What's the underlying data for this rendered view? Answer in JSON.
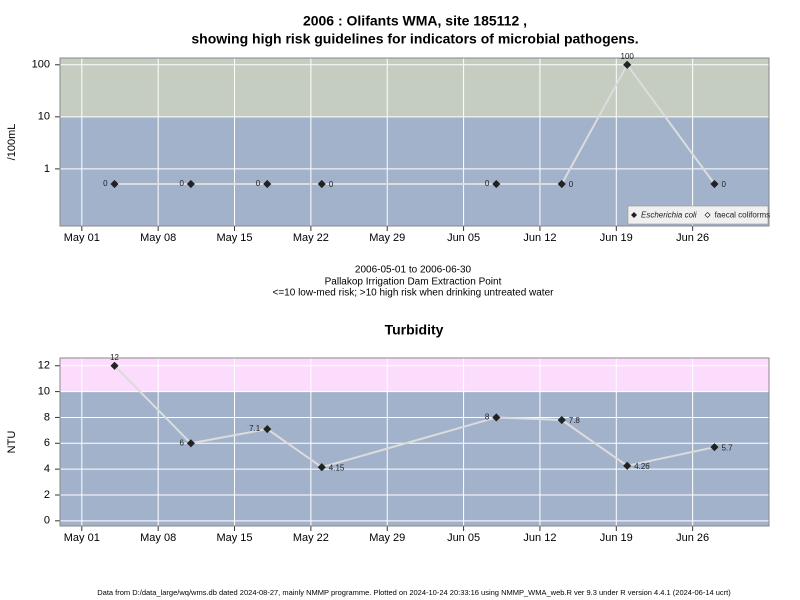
{
  "chart_data": [
    {
      "type": "line",
      "title": [
        "2006 : Olifants WMA, site 185112 ,",
        "showing high risk guidelines for indicators of microbial pathogens."
      ],
      "notes": [
        "2006-05-01 to 2006-06-30",
        "Pallakop Irrigation Dam Extraction Point",
        "<=10 low-med risk; >10 high risk when drinking untreated water"
      ],
      "y_label": "/100mL",
      "log_scale": true,
      "x": [
        "2006-05-04",
        "2006-05-11",
        "2006-05-18",
        "2006-05-23",
        "2006-06-08",
        "2006-06-14",
        "2006-06-20",
        "2006-06-28"
      ],
      "xlim": [
        "2006-04-29",
        "2006-07-03"
      ],
      "xticks": [
        {
          "value": "2006-05-01",
          "label": "May 01"
        },
        {
          "value": "2006-05-08",
          "label": "May 08"
        },
        {
          "value": "2006-05-15",
          "label": "May 15"
        },
        {
          "value": "2006-05-22",
          "label": "May 22"
        },
        {
          "value": "2006-05-29",
          "label": "May 29"
        },
        {
          "value": "2006-06-05",
          "label": "Jun 05"
        },
        {
          "value": "2006-06-12",
          "label": "Jun 12"
        },
        {
          "value": "2006-06-19",
          "label": "Jun 19"
        },
        {
          "value": "2006-06-26",
          "label": "Jun 26"
        }
      ],
      "ylim": [
        0.08,
        135
      ],
      "yticks": [
        1,
        10,
        100
      ],
      "grid": true,
      "background": "#a2b2cb",
      "bands": [
        {
          "from": 10,
          "color": "#c5ccc0"
        }
      ],
      "line_color": "#dcdcdc",
      "legend": "bottom-right",
      "series": [
        {
          "name": "Escherichia coli",
          "color": "#222222",
          "marker": "filled",
          "font_style": "italic",
          "values": [
            0,
            0,
            0,
            0,
            0,
            0,
            100,
            0
          ]
        },
        {
          "name": "faecal coliforms",
          "color": "#222222",
          "marker": "open",
          "values": [
            null,
            null,
            null,
            null,
            null,
            null,
            null,
            null
          ]
        }
      ]
    },
    {
      "type": "line",
      "title": "Turbidity",
      "y_label": "NTU",
      "log_scale": false,
      "x": [
        "2006-05-04",
        "2006-05-11",
        "2006-05-18",
        "2006-05-23",
        "2006-06-08",
        "2006-06-14",
        "2006-06-20",
        "2006-06-28"
      ],
      "xlim": [
        "2006-04-29",
        "2006-07-03"
      ],
      "xticks": [
        {
          "value": "2006-05-01",
          "label": "May 01"
        },
        {
          "value": "2006-05-08",
          "label": "May 08"
        },
        {
          "value": "2006-05-15",
          "label": "May 15"
        },
        {
          "value": "2006-05-22",
          "label": "May 22"
        },
        {
          "value": "2006-05-29",
          "label": "May 29"
        },
        {
          "value": "2006-06-05",
          "label": "Jun 05"
        },
        {
          "value": "2006-06-12",
          "label": "Jun 12"
        },
        {
          "value": "2006-06-19",
          "label": "Jun 19"
        },
        {
          "value": "2006-06-26",
          "label": "Jun 26"
        }
      ],
      "ylim": [
        -0.4,
        12.6
      ],
      "yticks": [
        0,
        2,
        4,
        6,
        8,
        10,
        12
      ],
      "grid": true,
      "background": "#a2b2cb",
      "bands": [
        {
          "from": 10,
          "color": "#fcdcfc"
        }
      ],
      "line_color": "#dcdcdc",
      "series": [
        {
          "color": "#222222",
          "marker": "filled",
          "values": [
            12,
            6,
            7.1,
            4.15,
            8,
            7.8,
            4.26,
            5.7
          ]
        }
      ]
    }
  ],
  "footer": "Data from D:/data_large/wq/wms.db dated 2024-08-27, mainly NMMP programme. Plotted on 2024-10-24 20:33:16 using NMMP_WMA_web.R ver 9.3 under R version 4.4.1 (2024-06-14 ucrt)"
}
